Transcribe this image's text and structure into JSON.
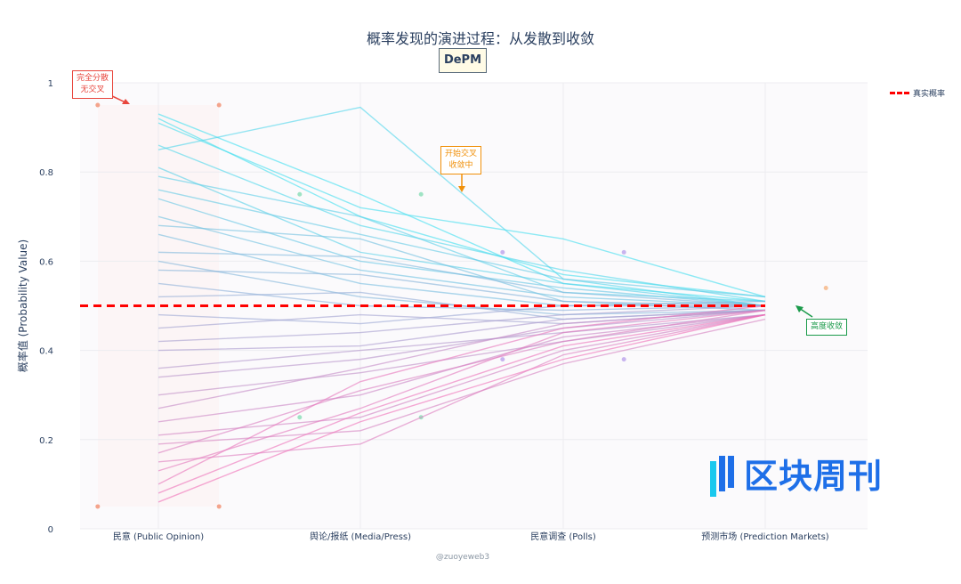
{
  "chart_data": {
    "type": "line",
    "title": "概率发现的演进过程：从发散到收敛",
    "subtitle": "DePM",
    "ylabel": "概率值 (Probability Value)",
    "xlabel": "",
    "categories": [
      "民意 (Public Opinion)",
      "舆论/报纸 (Media/Press)",
      "民意调查 (Polls)",
      "预测市场 (Prediction Markets)"
    ],
    "ylim": [
      0,
      1
    ],
    "yticks": [
      "0",
      "0.2",
      "0.4",
      "0.6",
      "0.8",
      "1"
    ],
    "grid": true,
    "true_probability": 0.5,
    "legend": {
      "position": "top-right",
      "entries": [
        "真实概率"
      ]
    },
    "colors": {
      "high": "#3fe0f0",
      "low": "#f06fb8",
      "true_line": "#ff0000"
    },
    "series": [
      [
        0.93,
        0.75,
        0.55,
        0.51
      ],
      [
        0.92,
        0.7,
        0.57,
        0.52
      ],
      [
        0.85,
        0.945,
        0.56,
        0.5
      ],
      [
        0.91,
        0.72,
        0.65,
        0.52
      ],
      [
        0.86,
        0.68,
        0.58,
        0.51
      ],
      [
        0.81,
        0.62,
        0.55,
        0.5
      ],
      [
        0.79,
        0.7,
        0.53,
        0.51
      ],
      [
        0.76,
        0.66,
        0.56,
        0.52
      ],
      [
        0.74,
        0.6,
        0.54,
        0.5
      ],
      [
        0.7,
        0.58,
        0.52,
        0.5
      ],
      [
        0.68,
        0.65,
        0.51,
        0.49
      ],
      [
        0.66,
        0.55,
        0.5,
        0.51
      ],
      [
        0.62,
        0.61,
        0.53,
        0.5
      ],
      [
        0.6,
        0.52,
        0.48,
        0.49
      ],
      [
        0.58,
        0.57,
        0.51,
        0.5
      ],
      [
        0.55,
        0.5,
        0.49,
        0.5
      ],
      [
        0.52,
        0.53,
        0.47,
        0.49
      ],
      [
        0.48,
        0.46,
        0.5,
        0.5
      ],
      [
        0.45,
        0.48,
        0.46,
        0.49
      ],
      [
        0.42,
        0.44,
        0.48,
        0.5
      ],
      [
        0.4,
        0.41,
        0.47,
        0.49
      ],
      [
        0.36,
        0.4,
        0.44,
        0.48
      ],
      [
        0.34,
        0.38,
        0.45,
        0.49
      ],
      [
        0.3,
        0.35,
        0.42,
        0.48
      ],
      [
        0.27,
        0.36,
        0.46,
        0.49
      ],
      [
        0.24,
        0.3,
        0.43,
        0.48
      ],
      [
        0.21,
        0.25,
        0.4,
        0.48
      ],
      [
        0.19,
        0.22,
        0.37,
        0.47
      ],
      [
        0.17,
        0.31,
        0.42,
        0.49
      ],
      [
        0.15,
        0.19,
        0.39,
        0.48
      ],
      [
        0.13,
        0.27,
        0.44,
        0.49
      ],
      [
        0.1,
        0.33,
        0.45,
        0.5
      ],
      [
        0.08,
        0.26,
        0.41,
        0.48
      ],
      [
        0.06,
        0.24,
        0.38,
        0.48
      ]
    ],
    "range_markers": [
      {
        "category": 0,
        "offset": -0.3,
        "values": [
          0.95,
          0.05
        ],
        "color": "#f4a48c"
      },
      {
        "category": 0,
        "offset": 0.3,
        "values": [
          0.95,
          0.05
        ],
        "color": "#f4a48c"
      },
      {
        "category": 1,
        "offset": -0.3,
        "values": [
          0.75,
          0.25
        ],
        "color": "#9fe3c4"
      },
      {
        "category": 1,
        "offset": 0.3,
        "values": [
          0.75,
          0.25
        ],
        "color": "#9fe3c4"
      },
      {
        "category": 2,
        "offset": -0.3,
        "values": [
          0.62,
          0.38
        ],
        "color": "#c8b4ef"
      },
      {
        "category": 2,
        "offset": 0.3,
        "values": [
          0.62,
          0.38
        ],
        "color": "#c8b4ef"
      },
      {
        "category": 3,
        "offset": 0.3,
        "values": [
          0.54
        ],
        "color": "#f7c29a"
      }
    ],
    "annotations": [
      {
        "text1": "完全分散",
        "text2": "无交叉",
        "color": "#e8453c"
      },
      {
        "text1": "开始交叉",
        "text2": "收敛中",
        "color": "#f0900a"
      },
      {
        "text1": "高度收敛",
        "text2": "",
        "color": "#1a9a4a"
      }
    ]
  },
  "credit": "@zuoyeweb3",
  "watermark": "区块周刊"
}
